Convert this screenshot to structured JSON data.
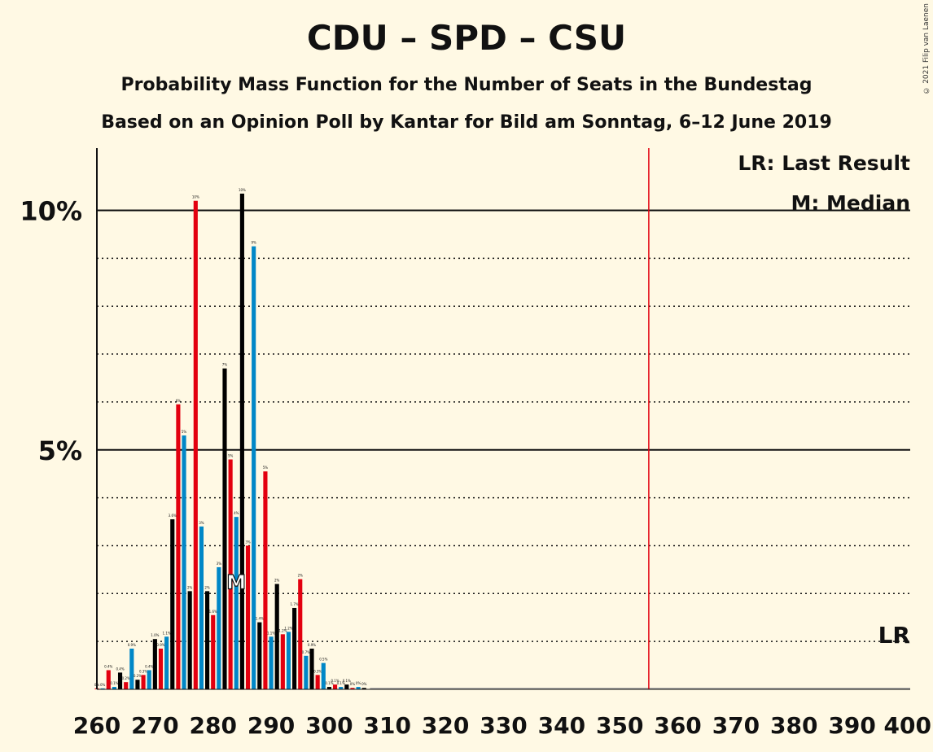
{
  "title": "CDU – SPD – CSU",
  "subtitle1": "Probability Mass Function for the Number of Seats in the Bundestag",
  "subtitle2": "Based on an Opinion Poll by Kantar for Bild am Sonntag, 6–12 June 2019",
  "copyright": "© 2021 Filip van Laenen",
  "legend": {
    "lr": "LR: Last Result",
    "median": "M: Median"
  },
  "markers": {
    "lr_label": "LR",
    "median_label": "M"
  },
  "colors": {
    "red": "#E3000F",
    "blue": "#0087C7",
    "black": "#000000",
    "lr_line": "#E3000F",
    "background": "#FFF9E4"
  },
  "chart_data": {
    "type": "bar",
    "x_ticks": [
      260,
      270,
      280,
      290,
      300,
      310,
      320,
      330,
      340,
      350,
      360,
      370,
      380,
      390,
      400
    ],
    "y_ticks": [
      {
        "value": 5,
        "label": "5%"
      },
      {
        "value": 10,
        "label": "10%"
      }
    ],
    "xlim": [
      260,
      400
    ],
    "ylim": [
      0,
      11.3
    ],
    "last_result": 355,
    "median": 284,
    "grid": "dotted every 1%, solid at 5% and 10%",
    "seats": [
      260,
      261,
      262,
      263,
      264,
      265,
      266,
      267,
      268,
      269,
      270,
      271,
      272,
      273,
      274,
      275,
      276,
      277,
      278,
      279,
      280,
      281,
      282,
      283,
      284,
      285,
      286,
      287,
      288,
      289,
      290,
      291,
      292,
      293,
      294,
      295,
      296,
      297,
      298,
      299,
      300,
      301,
      302,
      303,
      304,
      305,
      306
    ],
    "values": [
      0.02,
      0.02,
      0.4,
      0.05,
      0.35,
      0.15,
      0.85,
      0.2,
      0.3,
      0.4,
      1.05,
      0.85,
      1.1,
      3.55,
      5.95,
      5.3,
      2.05,
      10.2,
      3.4,
      2.05,
      1.55,
      2.55,
      6.7,
      4.8,
      3.6,
      10.35,
      3.0,
      9.25,
      1.4,
      4.55,
      1.1,
      2.2,
      1.15,
      1.2,
      1.7,
      2.3,
      0.7,
      0.85,
      0.3,
      0.55,
      0.05,
      0.1,
      0.05,
      0.1,
      0.03,
      0.05,
      0.03
    ],
    "colors": [
      "red",
      "blue",
      "red",
      "blue",
      "black",
      "red",
      "blue",
      "black",
      "red",
      "blue",
      "black",
      "red",
      "blue",
      "black",
      "red",
      "blue",
      "black",
      "red",
      "blue",
      "black",
      "red",
      "blue",
      "black",
      "red",
      "blue",
      "black",
      "red",
      "blue",
      "black",
      "red",
      "blue",
      "black",
      "red",
      "blue",
      "black",
      "red",
      "blue",
      "black",
      "red",
      "blue",
      "black",
      "red",
      "blue",
      "black",
      "red",
      "blue",
      "black"
    ],
    "bar_labels": [
      "0%",
      "0%",
      "0.4%",
      "0.1%",
      "0.4%",
      "0.2%",
      "0.9%",
      "0.2%",
      "0.3%",
      "0.4%",
      "1.0%",
      "0.9%",
      "1.1%",
      "3.6%",
      "6%",
      "5%",
      "2%",
      "10%",
      "3%",
      "2%",
      "1.6%",
      "3%",
      "7%",
      "5%",
      "4%",
      "10%",
      "3%",
      "9%",
      "1.4%",
      "5%",
      "1.1%",
      "2%",
      "1.2%",
      "1.2%",
      "1.7%",
      "2%",
      "0.7%",
      "0.9%",
      "0.3%",
      "0.5%",
      "0.1%",
      "0.1%",
      "0.1%",
      "0.1%",
      "0%",
      "0%",
      "0%"
    ]
  }
}
